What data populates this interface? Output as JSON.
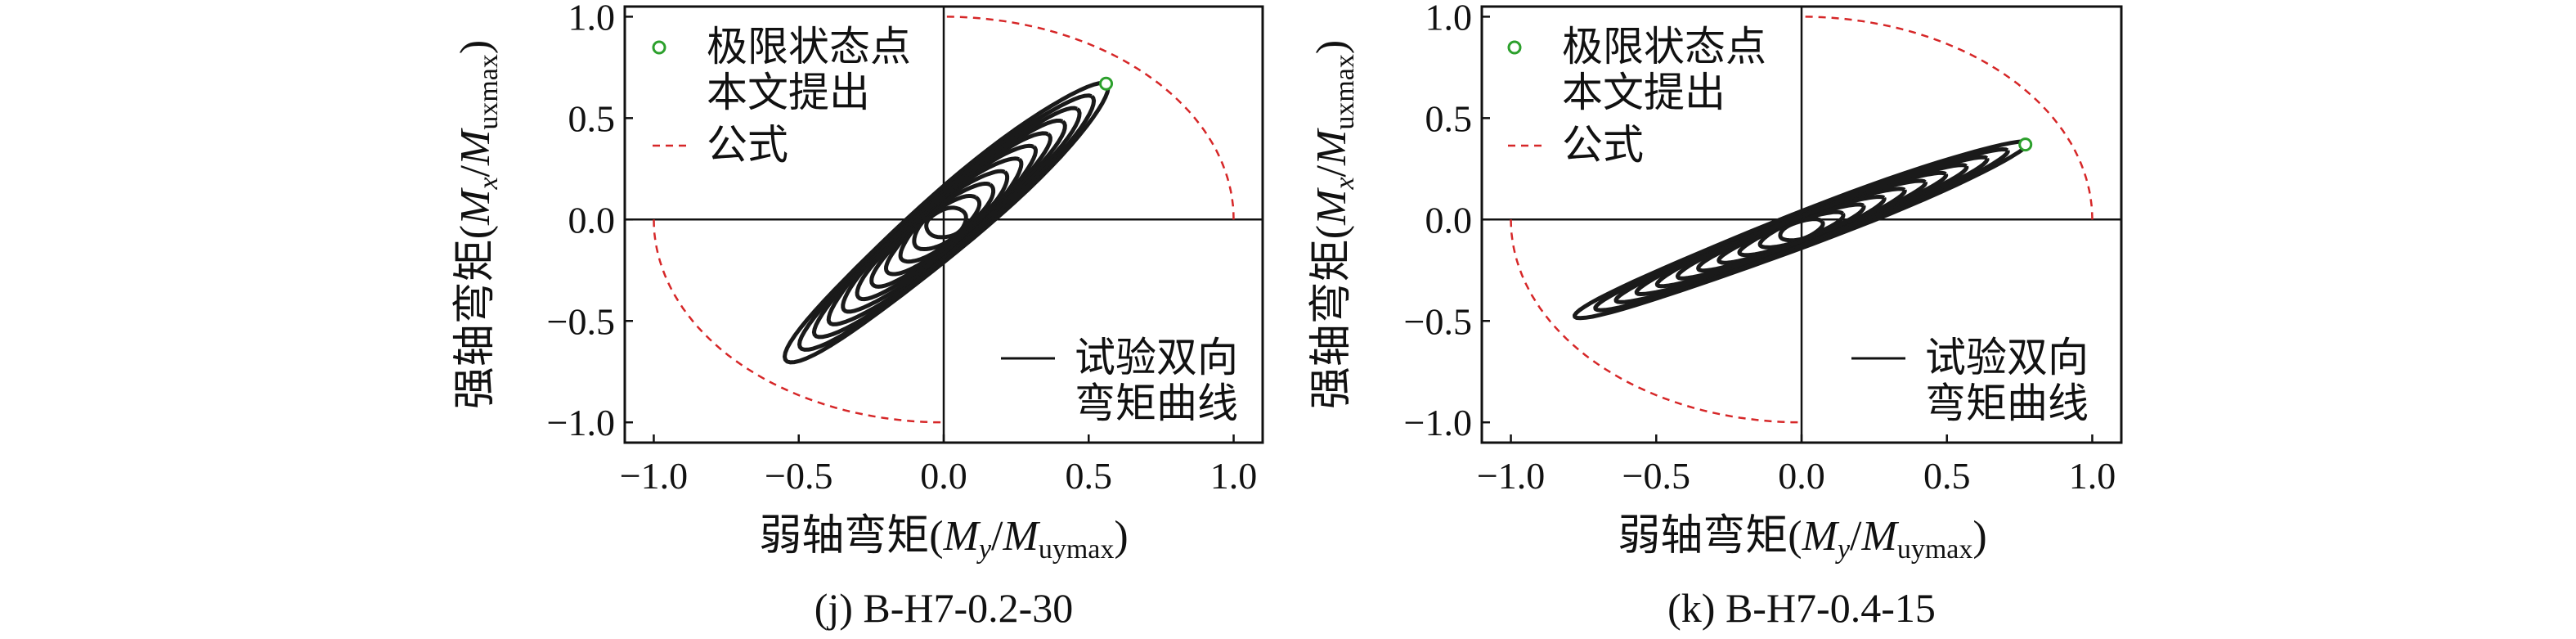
{
  "chart_data": [
    {
      "type": "line",
      "panel_label": "(j) B-H7-0.2-30",
      "xlabel": {
        "prefix": "弱轴弯矩(",
        "M1": "M",
        "sub1": "y",
        "slash": "/",
        "M2": "M",
        "sub2": "uymax",
        "suffix": ")"
      },
      "ylabel": {
        "prefix": "强轴弯矩(",
        "M1": "M",
        "sub1": "x",
        "slash": "/",
        "M2": "M",
        "sub2": "uxmax",
        "suffix": ")"
      },
      "xlim": [
        -1.1,
        1.1
      ],
      "ylim": [
        -1.1,
        1.05
      ],
      "xticks": [
        -1.0,
        -0.5,
        0.0,
        0.5,
        1.0
      ],
      "xtick_labels": [
        "−1.0",
        "−0.5",
        "0.0",
        "0.5",
        "1.0"
      ],
      "yticks": [
        -1.0,
        -0.5,
        0.0,
        0.5,
        1.0
      ],
      "ytick_labels": [
        "−1.0",
        "−0.5",
        "0.0",
        "0.5",
        "1.0"
      ],
      "legend_upper": {
        "point_label": "极限状态点",
        "line_label_1": "本文提出",
        "line_label_2": "公式",
        "position": "top-left"
      },
      "legend_lower": {
        "line_label_1": "试验双向",
        "line_label_2": "弯矩曲线",
        "position": "bottom-right"
      },
      "series": [
        {
          "name": "试验双向弯矩曲线",
          "color": "#1a1a1a",
          "hysteresis": {
            "extreme_pos": [
              0.56,
              0.67
            ],
            "extreme_neg": [
              -0.54,
              -0.7
            ],
            "half_width_minor": 0.12,
            "loops": 11
          }
        },
        {
          "name": "本文提出公式",
          "color": "#d62728",
          "style": "dashed",
          "shape": "unit-circle, quadrants I and III",
          "radius": 1.0
        },
        {
          "name": "极限状态点",
          "color": "#2ca02c",
          "marker": "open-circle",
          "points": [
            [
              0.56,
              0.67
            ]
          ]
        }
      ]
    },
    {
      "type": "line",
      "panel_label": "(k) B-H7-0.4-15",
      "xlabel": {
        "prefix": "弱轴弯矩(",
        "M1": "M",
        "sub1": "y",
        "slash": "/",
        "M2": "M",
        "sub2": "uymax",
        "suffix": ")"
      },
      "ylabel": {
        "prefix": "强轴弯矩(",
        "M1": "M",
        "sub1": "x",
        "slash": "/",
        "M2": "M",
        "sub2": "uxmax",
        "suffix": ")"
      },
      "xlim": [
        -1.1,
        1.1
      ],
      "ylim": [
        -1.1,
        1.05
      ],
      "xticks": [
        -1.0,
        -0.5,
        0.0,
        0.5,
        1.0
      ],
      "xtick_labels": [
        "−1.0",
        "−0.5",
        "0.0",
        "0.5",
        "1.0"
      ],
      "yticks": [
        -1.0,
        -0.5,
        0.0,
        0.5,
        1.0
      ],
      "ytick_labels": [
        "−1.0",
        "−0.5",
        "0.0",
        "0.5",
        "1.0"
      ],
      "legend_upper": {
        "point_label": "极限状态点",
        "line_label_1": "本文提出",
        "line_label_2": "公式",
        "position": "top-left"
      },
      "legend_lower": {
        "line_label_1": "试验双向",
        "line_label_2": "弯矩曲线",
        "position": "bottom-right"
      },
      "series": [
        {
          "name": "试验双向弯矩曲线",
          "color": "#1a1a1a",
          "hysteresis": {
            "extreme_pos": [
              0.78,
              0.38
            ],
            "extreme_neg": [
              -0.78,
              -0.48
            ],
            "half_width_minor": 0.08,
            "loops": 11
          }
        },
        {
          "name": "本文提出公式",
          "color": "#d62728",
          "style": "dashed",
          "shape": "unit-circle, quadrants I and III",
          "radius": 1.0
        },
        {
          "name": "极限状态点",
          "color": "#2ca02c",
          "marker": "open-circle",
          "points": [
            [
              0.77,
              0.37
            ]
          ]
        }
      ]
    }
  ]
}
